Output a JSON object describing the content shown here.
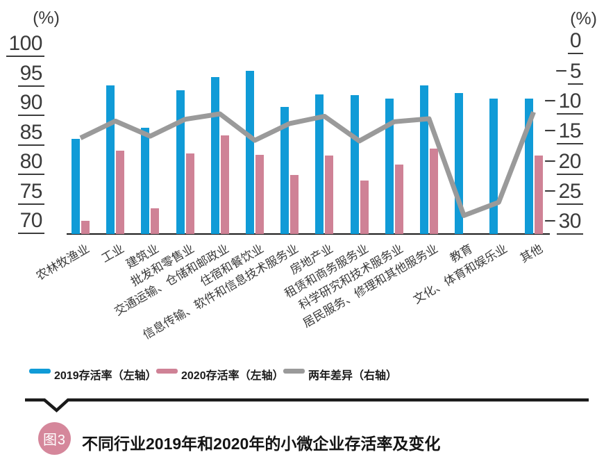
{
  "figure": {
    "caption_badge": "图3",
    "caption_title": "不同行业2019年和2020年的小微企业存活率及变化"
  },
  "chart_data": {
    "type": "bar",
    "subtype": "grouped-bars-with-line, dual y-axes, left axis truncated at 70",
    "categories": [
      "农林牧渔业",
      "工业",
      "建筑业",
      "批发和零售业",
      "交通运输、仓储和邮政业",
      "住宿和餐饮业",
      "信息传输、软件和信息技术服务业",
      "房地产业",
      "租赁和商务服务业",
      "科学研究和技术服务业",
      "居民服务、修理和其他服务业",
      "教育",
      "文化、体育和娱乐业",
      "其他"
    ],
    "series": [
      {
        "name": "2019存活率（左轴）",
        "type": "bar",
        "axis": "left",
        "color": "#109bd7",
        "values": [
          86.1,
          95.2,
          88.0,
          94.4,
          96.6,
          97.7,
          91.5,
          93.6,
          93.5,
          93.0,
          95.2,
          93.9,
          93.0,
          92.9
        ]
      },
      {
        "name": "2020存活率（左轴）",
        "type": "bar",
        "axis": "left",
        "color": "#cf8296",
        "values": [
          72.2,
          84.1,
          74.4,
          83.6,
          86.7,
          83.4,
          80.0,
          83.3,
          79.1,
          81.8,
          84.5,
          null,
          null,
          83.3
        ]
      },
      {
        "name": "两年差异（右轴）",
        "type": "line",
        "axis": "right",
        "color": "#9a9a9a",
        "values": [
          -13.9,
          -11.1,
          -13.6,
          -10.8,
          -9.9,
          -14.3,
          -11.5,
          -10.3,
          -14.4,
          -11.2,
          -10.7,
          -26.8,
          -24.6,
          -9.6
        ]
      }
    ],
    "left_axis": {
      "unit": "(%)",
      "ticks": [
        100,
        95,
        90,
        85,
        80,
        75,
        70
      ],
      "min": 70,
      "max": 100
    },
    "right_axis": {
      "unit": "(%)",
      "ticks": [
        0,
        -5,
        -10,
        -15,
        -20,
        -25,
        -30
      ],
      "min": -30,
      "max": 0
    },
    "legend_position": "bottom",
    "grid": false
  }
}
